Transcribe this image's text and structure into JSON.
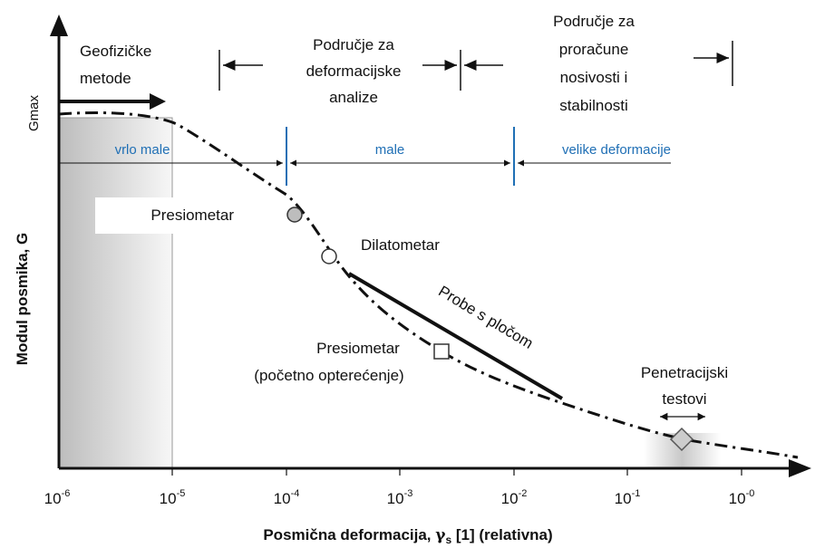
{
  "diagram": {
    "y_axis_label": "Modul posmika, G",
    "gmax_label": "Gmax",
    "x_axis_label": {
      "text": "Posmična deformacija, ",
      "symbol": "γ",
      "subscript": "s",
      "rest": " [1] (relativna)"
    },
    "ticks": [
      {
        "base": "10",
        "exp": "-6"
      },
      {
        "base": "10",
        "exp": "-5"
      },
      {
        "base": "10",
        "exp": "-4"
      },
      {
        "base": "10",
        "exp": "-3"
      },
      {
        "base": "10",
        "exp": "-2"
      },
      {
        "base": "10",
        "exp": "-1"
      },
      {
        "base": "10",
        "exp": "-0"
      }
    ],
    "ranges": [
      "vrlo male",
      "male",
      "velike deformacije"
    ],
    "top": {
      "geofizicke": [
        "Geofizičke",
        "metode"
      ],
      "deformacijske": [
        "Područje za",
        "deformacijske",
        "analize"
      ],
      "nosivost": [
        "Područje za",
        "proračune",
        "nosivosti i",
        "stabilnosti"
      ]
    },
    "methods": {
      "presiometar": "Presiometar",
      "dilatometar": "Dilatometar",
      "probe": "Probe s pločom",
      "presiometar_pocetno": [
        "Presiometar",
        "(početno opterećenje)"
      ],
      "penetracijski": [
        "Penetracijski",
        "testovi"
      ]
    }
  }
}
